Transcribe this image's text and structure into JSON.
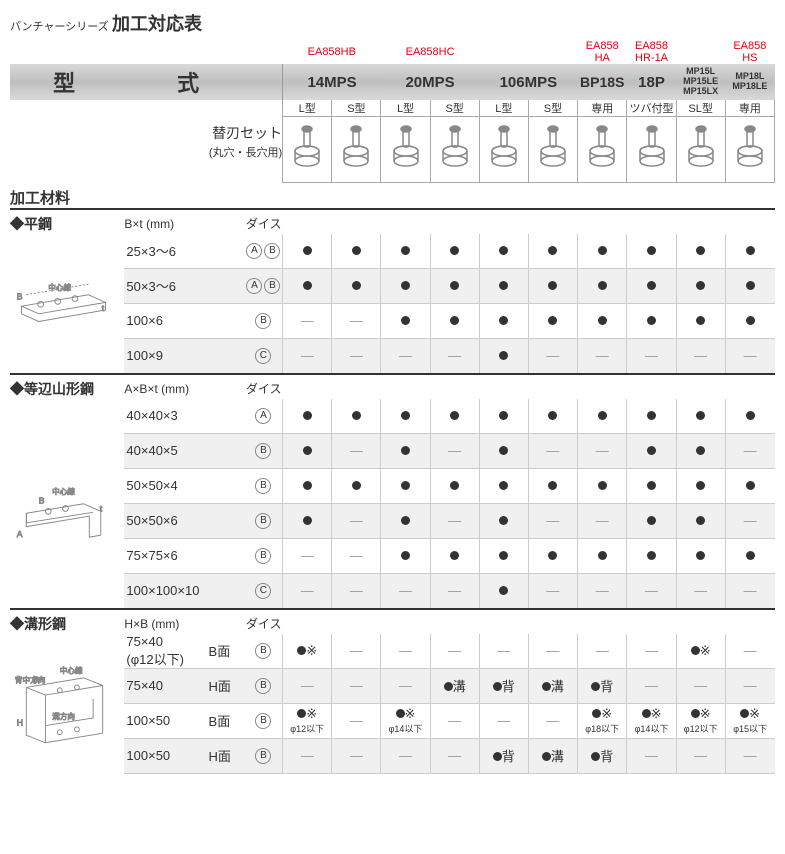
{
  "title_small": "パンチャーシリーズ",
  "title_big": "加工対応表",
  "red_labels": {
    "c14": "EA858HB",
    "c20": "EA858HC",
    "bp": "EA858\nHA",
    "p18": "EA858\nHR-1A",
    "hs": "EA858\nHS"
  },
  "model_label": "型　式",
  "models": [
    "14MPS",
    "20MPS",
    "106MPS",
    "BP18S",
    "18P",
    "MP15L\nMP15LE\nMP15LX",
    "MP18L\nMP18LE"
  ],
  "blade_set": "替刃セット",
  "blade_set_sub": "(丸穴・長穴用)",
  "subcols": [
    "L型",
    "S型",
    "L型",
    "S型",
    "L型",
    "S型",
    "専用",
    "ツバ付型",
    "SL型",
    "専用"
  ],
  "material_label": "加工材料",
  "sec1": {
    "name": "◆平鋼",
    "spec": "B×t (mm)",
    "dies": "ダイス",
    "rows": [
      {
        "s": "25×3〜6",
        "d": [
          "A",
          "B"
        ],
        "c": [
          "●",
          "●",
          "●",
          "●",
          "●",
          "●",
          "●",
          "●",
          "●",
          "●"
        ]
      },
      {
        "s": "50×3〜6",
        "d": [
          "A",
          "B"
        ],
        "c": [
          "●",
          "●",
          "●",
          "●",
          "●",
          "●",
          "●",
          "●",
          "●",
          "●"
        ]
      },
      {
        "s": "100×6",
        "d": [
          "B"
        ],
        "c": [
          "—",
          "—",
          "●",
          "●",
          "●",
          "●",
          "●",
          "●",
          "●",
          "●"
        ]
      },
      {
        "s": "100×9",
        "d": [
          "C"
        ],
        "c": [
          "—",
          "—",
          "—",
          "—",
          "●",
          "—",
          "—",
          "—",
          "—",
          "—"
        ]
      }
    ]
  },
  "sec2": {
    "name": "◆等辺山形鋼",
    "spec": "A×B×t (mm)",
    "dies": "ダイス",
    "rows": [
      {
        "s": "40×40×3",
        "d": [
          "A"
        ],
        "c": [
          "●",
          "●",
          "●",
          "●",
          "●",
          "●",
          "●",
          "●",
          "●",
          "●"
        ]
      },
      {
        "s": "40×40×5",
        "d": [
          "B"
        ],
        "c": [
          "●",
          "—",
          "●",
          "—",
          "●",
          "—",
          "—",
          "●",
          "●",
          "—"
        ]
      },
      {
        "s": "50×50×4",
        "d": [
          "B"
        ],
        "c": [
          "●",
          "●",
          "●",
          "●",
          "●",
          "●",
          "●",
          "●",
          "●",
          "●"
        ]
      },
      {
        "s": "50×50×6",
        "d": [
          "B"
        ],
        "c": [
          "●",
          "—",
          "●",
          "—",
          "●",
          "—",
          "—",
          "●",
          "●",
          "—"
        ]
      },
      {
        "s": "75×75×6",
        "d": [
          "B"
        ],
        "c": [
          "—",
          "—",
          "●",
          "●",
          "●",
          "●",
          "●",
          "●",
          "●",
          "●"
        ]
      },
      {
        "s": "100×100×10",
        "d": [
          "C"
        ],
        "c": [
          "—",
          "—",
          "—",
          "—",
          "●",
          "—",
          "—",
          "—",
          "—",
          "—"
        ]
      }
    ]
  },
  "sec3": {
    "name": "◆溝形鋼",
    "spec": "H×B (mm)",
    "dies": "ダイス",
    "rows": [
      {
        "s": "75×40\n(φ12以下)",
        "f": "B面",
        "d": [
          "B"
        ],
        "c": [
          "●※",
          "—",
          "—",
          "—",
          "—",
          "—",
          "—",
          "—",
          "●※",
          "—"
        ]
      },
      {
        "s": "75×40",
        "f": "H面",
        "d": [
          "B"
        ],
        "c": [
          "—",
          "—",
          "—",
          "●溝",
          "●背",
          "●溝",
          "●背",
          "—",
          "—",
          "—"
        ]
      },
      {
        "s": "100×50",
        "f": "B面",
        "d": [
          "B"
        ],
        "c": [
          "●※\nφ12以下",
          "—",
          "●※\nφ14以下",
          "—",
          "—",
          "—",
          "●※\nφ18以下",
          "●※\nφ14以下",
          "●※\nφ12以下",
          "●※\nφ15以下"
        ]
      },
      {
        "s": "100×50",
        "f": "H面",
        "d": [
          "B"
        ],
        "c": [
          "—",
          "—",
          "—",
          "—",
          "●背",
          "●溝",
          "●背",
          "—",
          "—",
          "—"
        ]
      }
    ]
  }
}
